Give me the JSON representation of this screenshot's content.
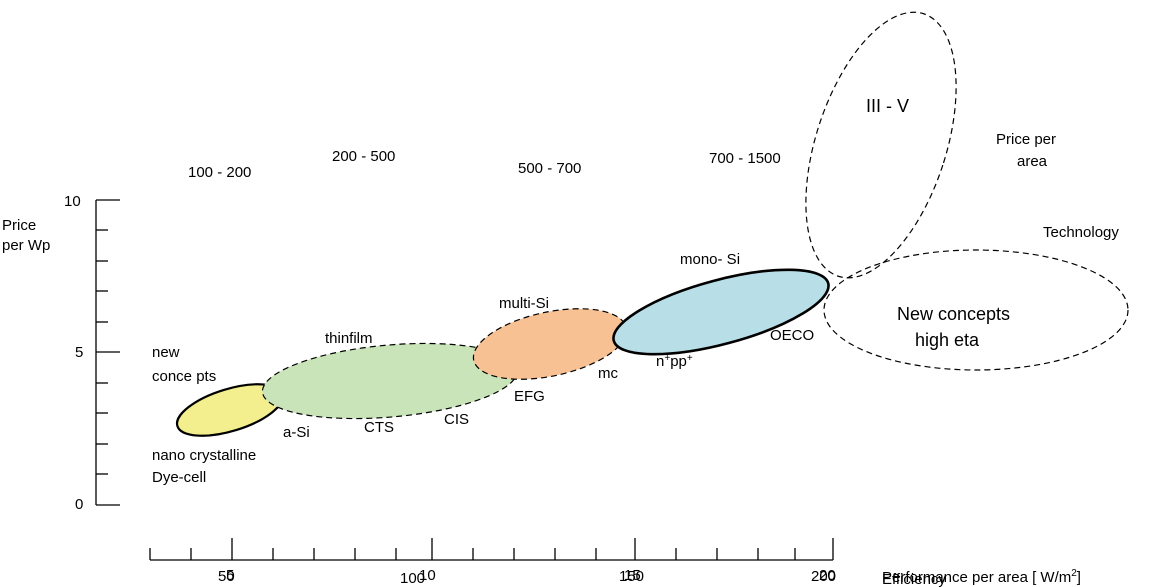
{
  "price_ranges": [
    "100 - 200",
    "200 - 500",
    "500 - 700",
    "700 - 1500"
  ],
  "y_axis": {
    "label_line1": "Price",
    "label_line2": "per Wp",
    "ticks": [
      "10",
      "5",
      "0"
    ]
  },
  "x_axis": {
    "efficiency_ticks": [
      "5",
      "10",
      "15",
      "20"
    ],
    "performance_ticks": [
      "50",
      "100",
      "150",
      "200"
    ],
    "efficiency_label": "Efficiency",
    "performance_label": "Performance per area [ W/m",
    "performance_unit_sup": "2",
    "performance_label_end": "]"
  },
  "technologies": {
    "new_concepts_line1": "new",
    "new_concepts_line2": "conce pts",
    "nano_line1": "nano crystalline",
    "nano_line2": "Dye-cell",
    "a_si": "a-Si",
    "thinfilm": "thinfilm",
    "cts": "CTS",
    "cis": "CIS",
    "multi_si": "multi-Si",
    "efg": "EFG",
    "mc": "mc",
    "mono_si": "mono- Si",
    "npp_n": "n",
    "npp_sup1": "+",
    "npp_pp": "pp",
    "npp_sup2": "+",
    "oeco": "OECO",
    "iii_v": "III - V",
    "new_concepts_high_line1": "New concepts",
    "new_concepts_high_line2": "high eta"
  },
  "legend_labels": {
    "price_per_area_line1": "Price per",
    "price_per_area_line2": "area",
    "technology": "Technology"
  },
  "colors": {
    "nano": "#f3ef8e",
    "thinfilm": "#c9e4b9",
    "multi": "#f7c193",
    "mono": "#b8dfe8"
  }
}
